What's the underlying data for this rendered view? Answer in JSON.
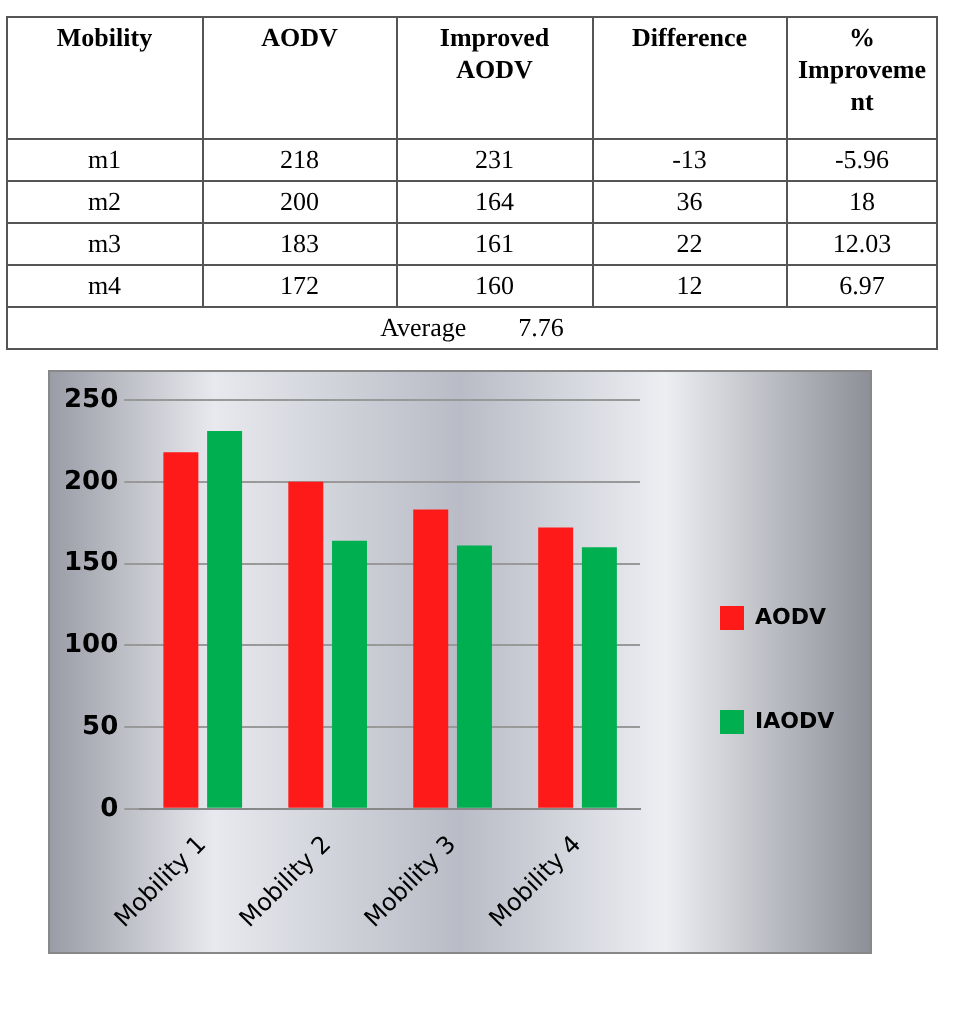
{
  "chart_data": [
    {
      "type": "other",
      "categories": [
        "Mobility",
        "AODV",
        "Improved AODV",
        "Difference",
        "% Improvement"
      ],
      "cell_labels": [
        [
          "m1",
          "218",
          "231",
          "-13",
          "-5.96"
        ],
        [
          "m2",
          "200",
          "164",
          "36",
          "18"
        ],
        [
          "m3",
          "183",
          "161",
          "22",
          "12.03"
        ],
        [
          "m4",
          "172",
          "160",
          "12",
          "6.97"
        ]
      ],
      "annotations": [
        "Average        7.76"
      ]
    },
    {
      "type": "bar",
      "categories": [
        "Mobility 1",
        "Mobility 2",
        "Mobility 3",
        "Mobility 4"
      ],
      "series": [
        {
          "name": "AODV",
          "color": "#ff1a1a",
          "values": [
            218,
            200,
            183,
            172
          ]
        },
        {
          "name": "IAODV",
          "color": "#00b050",
          "values": [
            231,
            164,
            161,
            160
          ]
        }
      ],
      "ylim": [
        0,
        250
      ],
      "yticks": [
        0,
        50,
        100,
        150,
        200,
        250
      ],
      "grid": "y",
      "legend": "right"
    }
  ]
}
